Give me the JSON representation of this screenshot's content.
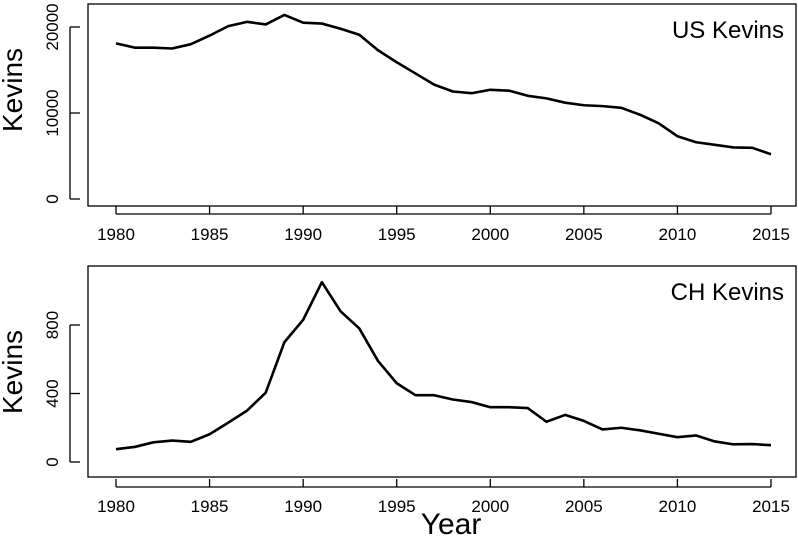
{
  "chart_data": [
    {
      "type": "line",
      "title": "US Kevins",
      "xlabel": "",
      "ylabel": "Kevins",
      "x": [
        1980,
        1981,
        1982,
        1983,
        1984,
        1985,
        1986,
        1987,
        1988,
        1989,
        1990,
        1991,
        1992,
        1993,
        1994,
        1995,
        1996,
        1997,
        1998,
        1999,
        2000,
        2001,
        2002,
        2003,
        2004,
        2005,
        2006,
        2007,
        2008,
        2009,
        2010,
        2011,
        2012,
        2013,
        2014,
        2015
      ],
      "values": [
        18100,
        17600,
        17600,
        17500,
        18000,
        19000,
        20100,
        20600,
        20300,
        21400,
        20500,
        20400,
        19800,
        19100,
        17300,
        15900,
        14600,
        13300,
        12500,
        12300,
        12700,
        12600,
        12000,
        11700,
        11200,
        10900,
        10800,
        10600,
        9800,
        8800,
        7300,
        6600,
        6300,
        6000,
        5950,
        5200
      ],
      "xlim": [
        1980,
        2015
      ],
      "ylim": [
        0,
        20000
      ],
      "xticks": [
        "1980",
        "1985",
        "1990",
        "1995",
        "2000",
        "2005",
        "2010",
        "2015"
      ],
      "yticks": [
        "0",
        "10000",
        "20000"
      ],
      "grid": false
    },
    {
      "type": "line",
      "title": "CH Kevins",
      "xlabel": "Year",
      "ylabel": "Kevins",
      "x": [
        1980,
        1981,
        1982,
        1983,
        1984,
        1985,
        1986,
        1987,
        1988,
        1989,
        1990,
        1991,
        1992,
        1993,
        1994,
        1995,
        1996,
        1997,
        1998,
        1999,
        2000,
        2001,
        2002,
        2003,
        2004,
        2005,
        2006,
        2007,
        2008,
        2009,
        2010,
        2011,
        2012,
        2013,
        2014,
        2015
      ],
      "values": [
        75,
        88,
        115,
        125,
        118,
        162,
        230,
        300,
        405,
        700,
        830,
        1050,
        880,
        780,
        590,
        460,
        390,
        390,
        365,
        350,
        320,
        320,
        315,
        235,
        275,
        240,
        190,
        200,
        185,
        165,
        145,
        155,
        120,
        103,
        105,
        98
      ],
      "xlim": [
        1980,
        2015
      ],
      "ylim": [
        0,
        800
      ],
      "xticks": [
        "1980",
        "1985",
        "1990",
        "1995",
        "2000",
        "2005",
        "2010",
        "2015"
      ],
      "yticks": [
        "0",
        "400",
        "800"
      ],
      "grid": false
    }
  ]
}
